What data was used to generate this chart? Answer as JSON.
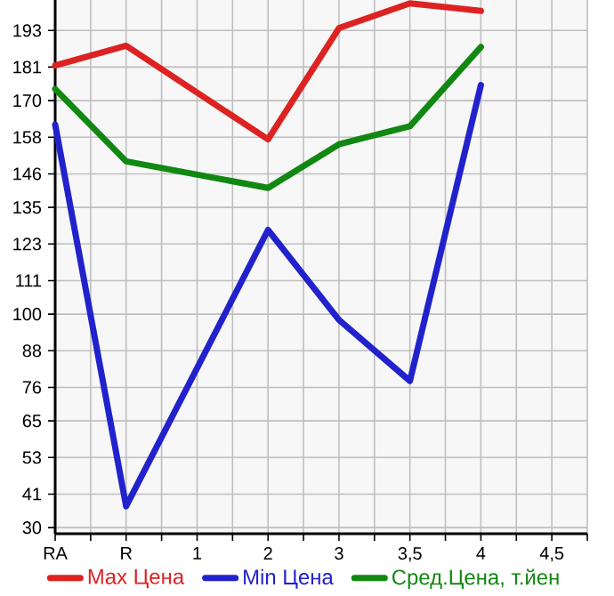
{
  "chart_data": {
    "type": "line",
    "categories": [
      "RA",
      "R",
      "1",
      "2",
      "3",
      "3,5",
      "4",
      "4,5"
    ],
    "series": [
      {
        "name": "Max Цена",
        "color": "#dd2222",
        "values": [
          181.5,
          188.0,
          null,
          157.3,
          193.8,
          201.9,
          199.4,
          null
        ]
      },
      {
        "name": "Min Цена",
        "color": "#2222cc",
        "values": [
          162.1,
          37.0,
          null,
          127.6,
          98.1,
          78.1,
          175.1,
          null
        ]
      },
      {
        "name": "Сред.Цена, т.йен",
        "color": "#118811",
        "values": [
          173.8,
          150.1,
          null,
          141.4,
          155.7,
          161.6,
          187.6,
          null
        ]
      }
    ],
    "ylim": [
      28,
      203
    ],
    "yticks": [
      30,
      41,
      53,
      65,
      76,
      88,
      100,
      111,
      123,
      135,
      146,
      158,
      170,
      181,
      193
    ],
    "grid": true,
    "legend": "bottom"
  }
}
